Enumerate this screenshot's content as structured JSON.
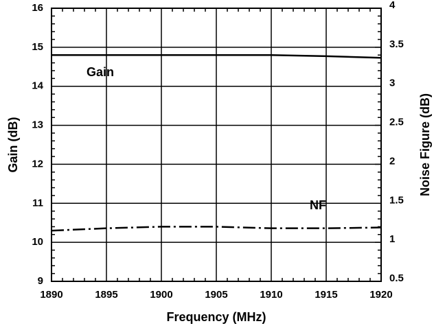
{
  "chart_data": {
    "type": "line",
    "xlabel": "Frequency (MHz)",
    "ylabel": "Gain (dB)",
    "y2label": "Noise Figure (dB)",
    "x": [
      1890,
      1895,
      1900,
      1905,
      1910,
      1915,
      1920
    ],
    "series": [
      {
        "name": "Gain",
        "color": "#000000",
        "values": [
          14.8,
          14.8,
          14.8,
          14.8,
          14.8,
          14.77,
          14.73
        ]
      },
      {
        "name": "NF",
        "color": "#000000",
        "axis": "y2",
        "values": [
          1.15,
          1.18,
          1.2,
          1.2,
          1.18,
          1.18,
          1.19
        ]
      }
    ],
    "xlim": [
      1890,
      1920
    ],
    "xticks": [
      1890,
      1895,
      1900,
      1905,
      1910,
      1915,
      1920
    ],
    "ylim": [
      9,
      16
    ],
    "yticks": [
      9,
      10,
      11,
      12,
      13,
      14,
      15,
      16
    ],
    "y2lim": [
      0.5,
      4
    ],
    "y2ticks": [
      0.5,
      1,
      1.5,
      2,
      2.5,
      3,
      3.5,
      4
    ],
    "grid": true
  }
}
